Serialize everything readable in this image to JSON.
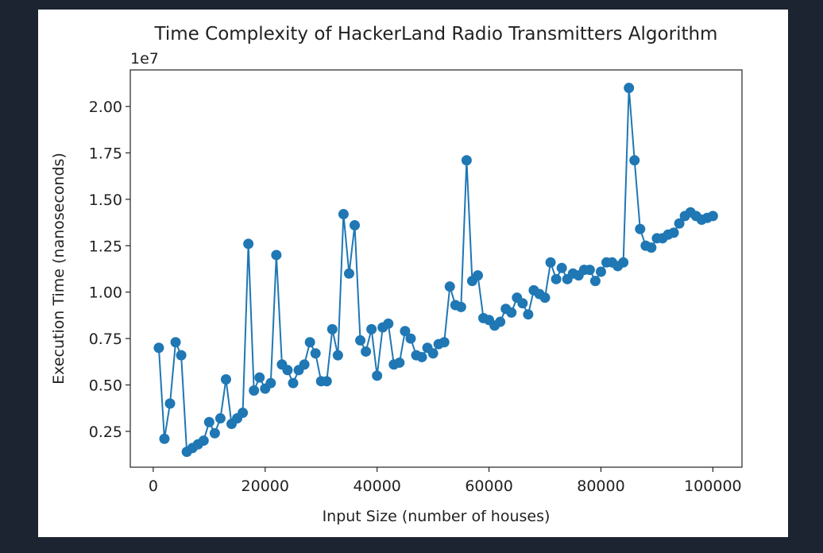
{
  "chart_data": {
    "type": "line",
    "title": "Time Complexity of HackerLand Radio Transmitters Algorithm",
    "x_label": "Input Size (number of houses)",
    "y_label": "Execution Time (nanoseconds)",
    "y_offset_label": "1e7",
    "x": [
      1000,
      2000,
      3000,
      4000,
      5000,
      6000,
      7000,
      8000,
      9000,
      10000,
      11000,
      12000,
      13000,
      14000,
      15000,
      16000,
      17000,
      18000,
      19000,
      20000,
      21000,
      22000,
      23000,
      24000,
      25000,
      26000,
      27000,
      28000,
      29000,
      30000,
      31000,
      32000,
      33000,
      34000,
      35000,
      36000,
      37000,
      38000,
      39000,
      40000,
      41000,
      42000,
      43000,
      44000,
      45000,
      46000,
      47000,
      48000,
      49000,
      50000,
      51000,
      52000,
      53000,
      54000,
      55000,
      56000,
      57000,
      58000,
      59000,
      60000,
      61000,
      62000,
      63000,
      64000,
      65000,
      66000,
      67000,
      68000,
      69000,
      70000,
      71000,
      72000,
      73000,
      74000,
      75000,
      76000,
      77000,
      78000,
      79000,
      80000,
      81000,
      82000,
      83000,
      84000,
      85000,
      86000,
      87000,
      88000,
      89000,
      90000,
      91000,
      92000,
      93000,
      94000,
      95000,
      96000,
      97000,
      98000,
      99000,
      100000
    ],
    "series": [
      {
        "name": "Execution Time",
        "color": "#1f77b4",
        "values": [
          0.7,
          0.21,
          0.4,
          0.73,
          0.66,
          0.14,
          0.16,
          0.18,
          0.2,
          0.3,
          0.24,
          0.32,
          0.53,
          0.29,
          0.32,
          0.35,
          1.26,
          0.47,
          0.54,
          0.48,
          0.51,
          1.2,
          0.61,
          0.58,
          0.51,
          0.58,
          0.61,
          0.73,
          0.67,
          0.52,
          0.52,
          0.8,
          0.66,
          1.42,
          1.1,
          1.36,
          0.74,
          0.68,
          0.8,
          0.55,
          0.81,
          0.83,
          0.61,
          0.62,
          0.79,
          0.75,
          0.66,
          0.65,
          0.7,
          0.67,
          0.72,
          0.73,
          1.03,
          0.93,
          0.92,
          1.71,
          1.06,
          1.09,
          0.86,
          0.85,
          0.82,
          0.84,
          0.91,
          0.89,
          0.97,
          0.94,
          0.88,
          1.01,
          0.99,
          0.97,
          1.16,
          1.07,
          1.13,
          1.07,
          1.1,
          1.09,
          1.12,
          1.12,
          1.06,
          1.11,
          1.16,
          1.16,
          1.14,
          1.16,
          2.1,
          1.71,
          1.34,
          1.25,
          1.24,
          1.29,
          1.29,
          1.31,
          1.32,
          1.37,
          1.41,
          1.43,
          1.41,
          1.39,
          1.4,
          1.41
        ]
      }
    ],
    "xlim": [
      -4100,
      105200
    ],
    "ylim": [
      0.057,
      2.197
    ],
    "xticks": [
      0,
      20000,
      40000,
      60000,
      80000,
      100000
    ],
    "yticks": [
      0.25,
      {
        "value": 0.5,
        "label": "0.50"
      },
      0.75,
      {
        "value": 1.0,
        "label": "1.00"
      },
      1.25,
      {
        "value": 1.5,
        "label": "1.50"
      },
      1.75,
      {
        "value": 2.0,
        "label": "2.00"
      }
    ]
  }
}
